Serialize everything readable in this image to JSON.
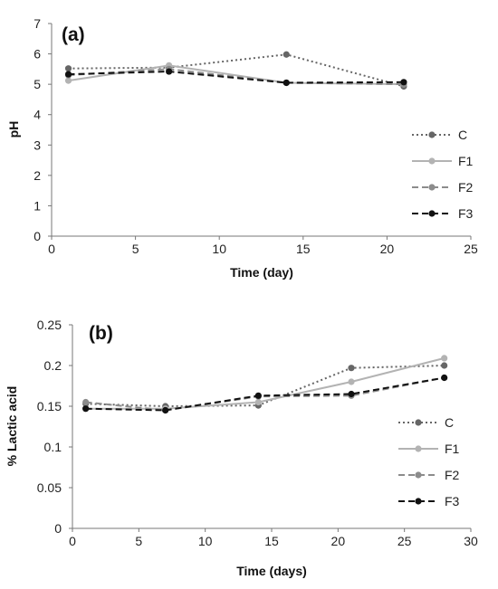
{
  "chart_data": [
    {
      "type": "line",
      "panel_label": "(a)",
      "xlabel": "Time (day)",
      "ylabel": "pH",
      "xlim": [
        0,
        25
      ],
      "ylim": [
        0,
        7
      ],
      "xticks": [
        0,
        5,
        10,
        15,
        20,
        25
      ],
      "yticks": [
        0,
        1,
        2,
        3,
        4,
        5,
        6,
        7
      ],
      "grid": false,
      "legend_position": "right",
      "series": [
        {
          "name": "C",
          "x": [
            1,
            7,
            14,
            21
          ],
          "y": [
            5.52,
            5.55,
            5.98,
            4.93
          ],
          "color": "#666666",
          "dash": "dotted"
        },
        {
          "name": "F1",
          "x": [
            1,
            7,
            14,
            21
          ],
          "y": [
            5.12,
            5.62,
            5.05,
            5.0
          ],
          "color": "#b3b3b3",
          "dash": "solid"
        },
        {
          "name": "F2",
          "x": [
            1,
            7,
            14,
            21
          ],
          "y": [
            5.3,
            5.5,
            5.05,
            5.0
          ],
          "color": "#8c8c8c",
          "dash": "dashed"
        },
        {
          "name": "F3",
          "x": [
            1,
            7,
            14,
            21
          ],
          "y": [
            5.33,
            5.42,
            5.05,
            5.07
          ],
          "color": "#111111",
          "dash": "dashed"
        }
      ]
    },
    {
      "type": "line",
      "panel_label": "(b)",
      "xlabel": "Time (days)",
      "ylabel": "% Lactic acid",
      "xlim": [
        0,
        30
      ],
      "ylim": [
        0,
        0.25
      ],
      "xticks": [
        0,
        5,
        10,
        15,
        20,
        25,
        30
      ],
      "yticks": [
        0,
        0.05,
        0.1,
        0.15,
        0.2,
        0.25
      ],
      "ytick_labels": [
        "0",
        "0.05",
        "0.1",
        "0.15",
        "0.2",
        "0.25"
      ],
      "grid": false,
      "legend_position": "right",
      "series": [
        {
          "name": "C",
          "x": [
            1,
            7,
            14,
            21,
            28
          ],
          "y": [
            0.153,
            0.15,
            0.151,
            0.197,
            0.2
          ],
          "color": "#666666",
          "dash": "dotted"
        },
        {
          "name": "F1",
          "x": [
            1,
            7,
            14,
            21,
            28
          ],
          "y": [
            0.147,
            0.147,
            0.155,
            0.18,
            0.209
          ],
          "color": "#b3b3b3",
          "dash": "solid"
        },
        {
          "name": "F2",
          "x": [
            1,
            7,
            14,
            21,
            28
          ],
          "y": [
            0.155,
            0.145,
            0.162,
            0.163,
            0.185
          ],
          "color": "#8c8c8c",
          "dash": "dashed"
        },
        {
          "name": "F3",
          "x": [
            1,
            7,
            14,
            21,
            28
          ],
          "y": [
            0.147,
            0.145,
            0.163,
            0.165,
            0.185
          ],
          "color": "#111111",
          "dash": "dashed"
        }
      ]
    }
  ]
}
